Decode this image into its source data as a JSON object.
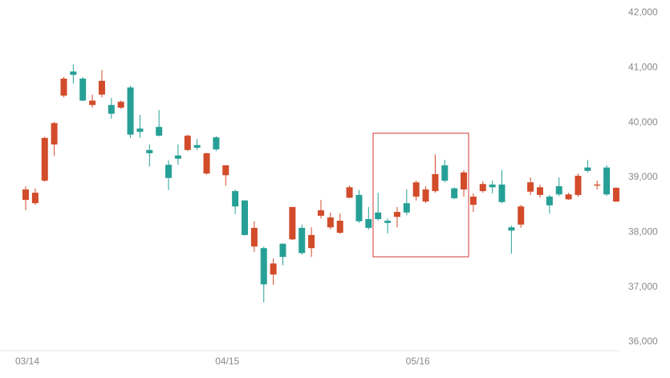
{
  "chart_data": {
    "type": "candlestick",
    "categories": [
      "03/14",
      null,
      null,
      null,
      null,
      null,
      null,
      null,
      null,
      null,
      null,
      null,
      null,
      null,
      null,
      null,
      null,
      null,
      null,
      null,
      null,
      "04/15",
      null,
      null,
      null,
      null,
      null,
      null,
      null,
      null,
      null,
      null,
      null,
      null,
      null,
      null,
      null,
      null,
      null,
      null,
      null,
      "05/16",
      null,
      null,
      null,
      null,
      null,
      null,
      null,
      null,
      null,
      null,
      null,
      null,
      null,
      null,
      null,
      null,
      null,
      null,
      null,
      null,
      null
    ],
    "open": [
      38590,
      38530,
      38940,
      39600,
      40490,
      40930,
      40800,
      40320,
      40510,
      40320,
      40270,
      40640,
      39890,
      39500,
      39920,
      39230,
      39400,
      39500,
      39590,
      39070,
      39730,
      39040,
      38750,
      38580,
      37740,
      37710,
      37230,
      37790,
      37870,
      38080,
      37710,
      38300,
      38090,
      37990,
      38630,
      38680,
      38240,
      38360,
      38210,
      38280,
      38530,
      38650,
      38560,
      38750,
      39220,
      38800,
      38780,
      38500,
      38750,
      38870,
      38870,
      38090,
      38140,
      38740,
      38680,
      38650,
      38840,
      38600,
      38680,
      39180,
      38850,
      39180,
      38560
    ],
    "high": [
      38840,
      38800,
      39740,
      40010,
      40830,
      41060,
      40830,
      40510,
      40960,
      40450,
      40400,
      40670,
      40140,
      39600,
      40230,
      39310,
      39600,
      39780,
      39700,
      39450,
      39750,
      39220,
      38780,
      38580,
      38200,
      37740,
      37520,
      37800,
      38460,
      38140,
      38090,
      38590,
      38360,
      38340,
      38850,
      38770,
      38460,
      38720,
      38250,
      38460,
      38780,
      38940,
      38840,
      39420,
      39320,
      38820,
      39130,
      38710,
      38930,
      38940,
      39130,
      38120,
      38500,
      39000,
      38870,
      38680,
      39000,
      38720,
      39070,
      39320,
      38940,
      39220,
      38820
    ],
    "low": [
      38400,
      38500,
      38920,
      39390,
      40460,
      40710,
      40390,
      40270,
      40460,
      40070,
      40250,
      39720,
      39720,
      39200,
      39750,
      38770,
      39230,
      39480,
      39500,
      39050,
      39480,
      38850,
      38330,
      37940,
      37640,
      36720,
      37040,
      37400,
      37860,
      37590,
      37550,
      38250,
      38050,
      37970,
      38620,
      38170,
      38050,
      38210,
      37980,
      38090,
      38310,
      38580,
      38530,
      38720,
      38910,
      38600,
      38650,
      38370,
      38720,
      38710,
      38530,
      37610,
      38080,
      38680,
      38630,
      38340,
      38660,
      38590,
      38650,
      39090,
      38780,
      38660,
      38550
    ],
    "close": [
      38780,
      38720,
      39720,
      39990,
      40800,
      40870,
      40400,
      40400,
      40760,
      40160,
      40380,
      39780,
      39830,
      39440,
      39760,
      38990,
      39340,
      39760,
      39540,
      39440,
      39510,
      39220,
      38470,
      37950,
      38080,
      37050,
      37430,
      37550,
      38460,
      37620,
      37950,
      38400,
      38270,
      38210,
      38820,
      38200,
      38080,
      38240,
      38170,
      38370,
      38360,
      38910,
      38780,
      39060,
      38940,
      38620,
      39090,
      38650,
      38880,
      38820,
      38550,
      38030,
      38470,
      38910,
      38820,
      38490,
      38690,
      38690,
      39030,
      39120,
      38870,
      38690,
      38810
    ],
    "up_color": "#d24b2a",
    "down_color": "#26a096",
    "ylim": [
      35840,
      42000
    ],
    "yticks": [
      {
        "value": 36000,
        "label": "36,000"
      },
      {
        "value": 37000,
        "label": "37,000"
      },
      {
        "value": 38000,
        "label": "38,000"
      },
      {
        "value": 39000,
        "label": "39,000"
      },
      {
        "value": 40000,
        "label": "40,000"
      },
      {
        "value": 41000,
        "label": "41,000"
      },
      {
        "value": 42000,
        "label": "42,000"
      }
    ]
  }
}
